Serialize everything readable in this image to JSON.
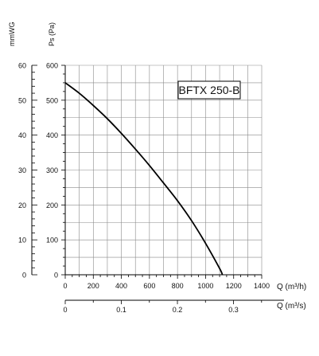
{
  "chart_data": {
    "type": "line",
    "model_label": "BFTX 250-B",
    "primary_x_axis": {
      "label": "Q (m³/h)",
      "ticks": [
        0,
        200,
        400,
        600,
        800,
        1000,
        1200,
        1400
      ],
      "range": [
        0,
        1400
      ]
    },
    "secondary_x_axis": {
      "label": "Q (m³/s)",
      "ticks": [
        0,
        0.1,
        0.2,
        0.3
      ],
      "range": [
        0,
        0.39
      ]
    },
    "left_y_axis": {
      "label": "mmWG",
      "ticks": [
        0,
        10,
        20,
        30,
        40,
        50,
        60
      ],
      "range": [
        0,
        60
      ]
    },
    "right_y_axis": {
      "label": "Ps (Pa)",
      "ticks": [
        0,
        100,
        200,
        300,
        400,
        500,
        600
      ],
      "range": [
        0,
        600
      ]
    },
    "grid": true,
    "series": [
      {
        "x": [
          0,
          100,
          200,
          300,
          400,
          500,
          600,
          700,
          800,
          900,
          1000,
          1100,
          1120
        ],
        "y": [
          550,
          520,
          485,
          447,
          405,
          360,
          313,
          263,
          212,
          155,
          90,
          18,
          0
        ]
      }
    ]
  }
}
